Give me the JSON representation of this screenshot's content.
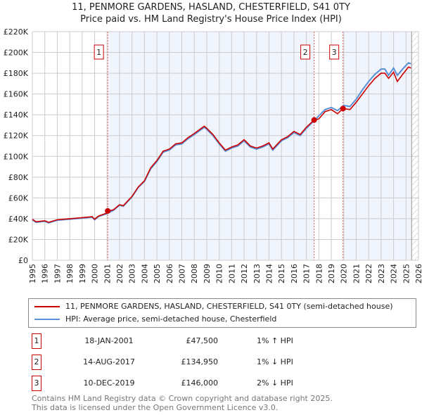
{
  "chart_data": {
    "type": "line",
    "title": "11, PENMORE GARDENS, HASLAND, CHESTERFIELD, S41 0TY",
    "subtitle": "Price paid vs. HM Land Registry's House Price Index (HPI)",
    "xlim": [
      1995,
      2026
    ],
    "ylim": [
      0,
      220000
    ],
    "x_ticks": [
      "1995",
      "1996",
      "1997",
      "1998",
      "1999",
      "2000",
      "2001",
      "2002",
      "2003",
      "2004",
      "2005",
      "2006",
      "2007",
      "2008",
      "2009",
      "2010",
      "2011",
      "2012",
      "2013",
      "2014",
      "2015",
      "2016",
      "2017",
      "2018",
      "2019",
      "2020",
      "2021",
      "2022",
      "2023",
      "2024",
      "2025",
      "2026"
    ],
    "y_ticks": [
      {
        "v": 0,
        "label": "£0"
      },
      {
        "v": 20000,
        "label": "£20K"
      },
      {
        "v": 40000,
        "label": "£40K"
      },
      {
        "v": 60000,
        "label": "£60K"
      },
      {
        "v": 80000,
        "label": "£80K"
      },
      {
        "v": 100000,
        "label": "£100K"
      },
      {
        "v": 120000,
        "label": "£120K"
      },
      {
        "v": 140000,
        "label": "£140K"
      },
      {
        "v": 160000,
        "label": "£160K"
      },
      {
        "v": 180000,
        "label": "£180K"
      },
      {
        "v": 200000,
        "label": "£200K"
      },
      {
        "v": 220000,
        "label": "£220K"
      }
    ],
    "grid": true,
    "series": [
      {
        "name": "HPI: Average price, semi-detached house, Chesterfield",
        "color": "#5b8fd6",
        "points": [
          [
            1995,
            39000
          ],
          [
            1995.3,
            36500
          ],
          [
            1996,
            37500
          ],
          [
            1996.3,
            36000
          ],
          [
            1997,
            38500
          ],
          [
            1998,
            39500
          ],
          [
            1999,
            40500
          ],
          [
            1999.8,
            41500
          ],
          [
            2000,
            39000
          ],
          [
            2000.3,
            42000
          ],
          [
            2001,
            45000
          ],
          [
            2001.5,
            48000
          ],
          [
            2002,
            53000
          ],
          [
            2002.3,
            52000
          ],
          [
            2003,
            61000
          ],
          [
            2003.5,
            70000
          ],
          [
            2004,
            76000
          ],
          [
            2004.5,
            88000
          ],
          [
            2005,
            95000
          ],
          [
            2005.5,
            104000
          ],
          [
            2006,
            106000
          ],
          [
            2006.5,
            111000
          ],
          [
            2007,
            112000
          ],
          [
            2007.5,
            117000
          ],
          [
            2008,
            121000
          ],
          [
            2008.8,
            128000
          ],
          [
            2009,
            126000
          ],
          [
            2009.5,
            120000
          ],
          [
            2010,
            112000
          ],
          [
            2010.5,
            105000
          ],
          [
            2011,
            108000
          ],
          [
            2011.5,
            110000
          ],
          [
            2012,
            115000
          ],
          [
            2012.5,
            109000
          ],
          [
            2013,
            107000
          ],
          [
            2013.5,
            109000
          ],
          [
            2014,
            112000
          ],
          [
            2014.3,
            106000
          ],
          [
            2015,
            115000
          ],
          [
            2015.5,
            118000
          ],
          [
            2016,
            123000
          ],
          [
            2016.5,
            120000
          ],
          [
            2017,
            127000
          ],
          [
            2017.5,
            133000
          ],
          [
            2018,
            139000
          ],
          [
            2018.5,
            145000
          ],
          [
            2019,
            147000
          ],
          [
            2019.5,
            144000
          ],
          [
            2020,
            149000
          ],
          [
            2020.5,
            148000
          ],
          [
            2021,
            155000
          ],
          [
            2021.5,
            164000
          ],
          [
            2022,
            172000
          ],
          [
            2022.5,
            179000
          ],
          [
            2023,
            184000
          ],
          [
            2023.3,
            184000
          ],
          [
            2023.6,
            178000
          ],
          [
            2024,
            185000
          ],
          [
            2024.3,
            178000
          ],
          [
            2024.8,
            185000
          ],
          [
            2025.2,
            190000
          ],
          [
            2025.4,
            189000
          ]
        ]
      },
      {
        "name": "11, PENMORE GARDENS, HASLAND, CHESTERFIELD, S41 0TY (semi-detached house)",
        "color": "#cc0000",
        "points": [
          [
            1995,
            39500
          ],
          [
            1995.3,
            37000
          ],
          [
            1996,
            38000
          ],
          [
            1996.3,
            36500
          ],
          [
            1997,
            39000
          ],
          [
            1998,
            40000
          ],
          [
            1999,
            41000
          ],
          [
            1999.8,
            42000
          ],
          [
            2000,
            39500
          ],
          [
            2000.3,
            42500
          ],
          [
            2001,
            45500
          ],
          [
            2001.05,
            47500
          ],
          [
            2001.5,
            48500
          ],
          [
            2002,
            53500
          ],
          [
            2002.3,
            52500
          ],
          [
            2003,
            61500
          ],
          [
            2003.5,
            70500
          ],
          [
            2004,
            76500
          ],
          [
            2004.5,
            89000
          ],
          [
            2005,
            96000
          ],
          [
            2005.5,
            105000
          ],
          [
            2006,
            107000
          ],
          [
            2006.5,
            112000
          ],
          [
            2007,
            113000
          ],
          [
            2007.5,
            118000
          ],
          [
            2008,
            122000
          ],
          [
            2008.8,
            129000
          ],
          [
            2009,
            127000
          ],
          [
            2009.5,
            121000
          ],
          [
            2010,
            113000
          ],
          [
            2010.5,
            106000
          ],
          [
            2011,
            109000
          ],
          [
            2011.5,
            111000
          ],
          [
            2012,
            116000
          ],
          [
            2012.5,
            110000
          ],
          [
            2013,
            108000
          ],
          [
            2013.5,
            110000
          ],
          [
            2014,
            113000
          ],
          [
            2014.3,
            107000
          ],
          [
            2015,
            116000
          ],
          [
            2015.5,
            119000
          ],
          [
            2016,
            124000
          ],
          [
            2016.5,
            121000
          ],
          [
            2017,
            128000
          ],
          [
            2017.62,
            134950
          ],
          [
            2018,
            136000
          ],
          [
            2018.5,
            143000
          ],
          [
            2019,
            145000
          ],
          [
            2019.5,
            141000
          ],
          [
            2019.94,
            146000
          ],
          [
            2020.5,
            145000
          ],
          [
            2021,
            152000
          ],
          [
            2021.5,
            160000
          ],
          [
            2022,
            168000
          ],
          [
            2022.5,
            175000
          ],
          [
            2023,
            180000
          ],
          [
            2023.3,
            180000
          ],
          [
            2023.6,
            175000
          ],
          [
            2024,
            181000
          ],
          [
            2024.3,
            172000
          ],
          [
            2024.8,
            180000
          ],
          [
            2025.2,
            186000
          ],
          [
            2025.4,
            185000
          ]
        ]
      }
    ],
    "sales": [
      {
        "n": "1",
        "x": 2001.05,
        "y": 47500
      },
      {
        "n": "2",
        "x": 2017.62,
        "y": 134950
      },
      {
        "n": "3",
        "x": 2019.94,
        "y": 146000
      }
    ],
    "forecast_from": 2025.45
  },
  "legend": {
    "red": "11, PENMORE GARDENS, HASLAND, CHESTERFIELD, S41 0TY (semi-detached house)",
    "blue": "HPI: Average price, semi-detached house, Chesterfield"
  },
  "table": [
    {
      "n": "1",
      "date": "18-JAN-2001",
      "price": "£47,500",
      "hpi": "1% ↑ HPI"
    },
    {
      "n": "2",
      "date": "14-AUG-2017",
      "price": "£134,950",
      "hpi": "1% ↓ HPI"
    },
    {
      "n": "3",
      "date": "10-DEC-2019",
      "price": "£146,000",
      "hpi": "2% ↓ HPI"
    }
  ],
  "footer": {
    "line1": "Contains HM Land Registry data © Crown copyright and database right 2025.",
    "line2": "This data is licensed under the Open Government Licence v3.0."
  }
}
